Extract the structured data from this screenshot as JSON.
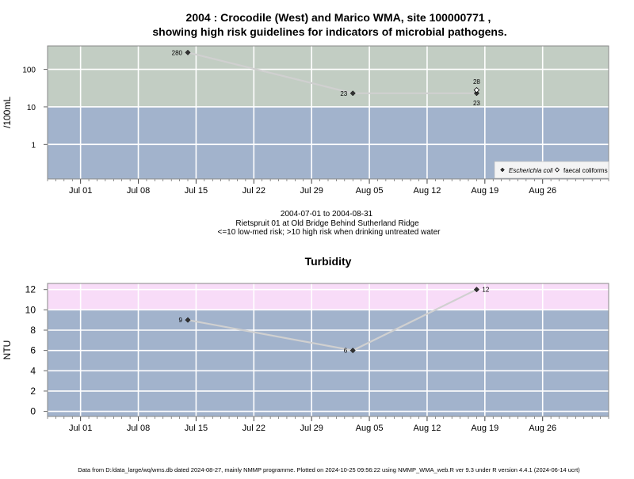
{
  "colors": {
    "low_risk_band": "#a2b3cc",
    "high_risk_band": "#c2cdc3",
    "turbidity_high_band": "#f8dcf8",
    "grid": "#ffffff",
    "series_line": "#d0d0d0",
    "marker": "#333333"
  },
  "footer": "Data from D:/data_large/wq/wms.db dated 2024-08-27, mainly NMMP programme. Plotted on 2024-10-25 09:56:22 using NMMP_WMA_web.R ver 9.3 under R version 4.4.1 (2024-06-14 ucrt)",
  "chart_data": [
    {
      "type": "scatter",
      "title_line1": "2004 : Crocodile (West) and Marico WMA, site 100000771 ,",
      "title_line2": "showing high risk guidelines for indicators of microbial pathogens.",
      "ylabel": "/100mL",
      "yscale": "log",
      "ylim": [
        0.12,
        420
      ],
      "yticks": [
        1,
        10,
        100
      ],
      "ytick_labels": [
        "1",
        "10",
        "100"
      ],
      "xlim": [
        "2004-06-27",
        "2004-09-03"
      ],
      "xticks": [
        "2004-07-01",
        "2004-07-08",
        "2004-07-15",
        "2004-07-22",
        "2004-07-29",
        "2004-08-05",
        "2004-08-12",
        "2004-08-19",
        "2004-08-26"
      ],
      "xtick_labels": [
        "Jul 01",
        "Jul 08",
        "Jul 15",
        "Jul 22",
        "Jul 29",
        "Aug 05",
        "Aug 12",
        "Aug 19",
        "Aug 26"
      ],
      "threshold": 10,
      "grid": true,
      "legend_position": "bottom-right",
      "series": [
        {
          "name": "Escherichia coli",
          "marker": "filled-diamond",
          "connected": true,
          "x": [
            "2004-07-14",
            "2004-08-03",
            "2004-08-18"
          ],
          "y": [
            280,
            23,
            23
          ],
          "labels": [
            "280",
            "23",
            "23"
          ]
        },
        {
          "name": "faecal coliforms",
          "marker": "open-diamond",
          "connected": false,
          "x": [
            "2004-08-18"
          ],
          "y": [
            28
          ],
          "labels": [
            "28"
          ]
        }
      ],
      "subtitle_lines": [
        "2004-07-01 to 2004-08-31",
        "Rietspruit 01 at Old Bridge Behind Sutherland Ridge",
        "<=10 low-med risk; >10 high risk when drinking untreated water"
      ]
    },
    {
      "type": "line",
      "title": "Turbidity",
      "ylabel": "NTU",
      "ylim": [
        -0.5,
        12.6
      ],
      "yticks": [
        0,
        2,
        4,
        6,
        8,
        10,
        12
      ],
      "ytick_labels": [
        "0",
        "2",
        "4",
        "6",
        "8",
        "10",
        "12"
      ],
      "xlim": [
        "2004-06-27",
        "2004-09-03"
      ],
      "xticks": [
        "2004-07-01",
        "2004-07-08",
        "2004-07-15",
        "2004-07-22",
        "2004-07-29",
        "2004-08-05",
        "2004-08-12",
        "2004-08-19",
        "2004-08-26"
      ],
      "xtick_labels": [
        "Jul 01",
        "Jul 08",
        "Jul 15",
        "Jul 22",
        "Jul 29",
        "Aug 05",
        "Aug 12",
        "Aug 19",
        "Aug 26"
      ],
      "threshold": 10,
      "grid": true,
      "series": [
        {
          "marker": "filled-diamond",
          "connected": true,
          "x": [
            "2004-07-14",
            "2004-08-03",
            "2004-08-18"
          ],
          "y": [
            9,
            6,
            12
          ],
          "labels": [
            "9",
            "6",
            "12"
          ]
        }
      ]
    }
  ]
}
